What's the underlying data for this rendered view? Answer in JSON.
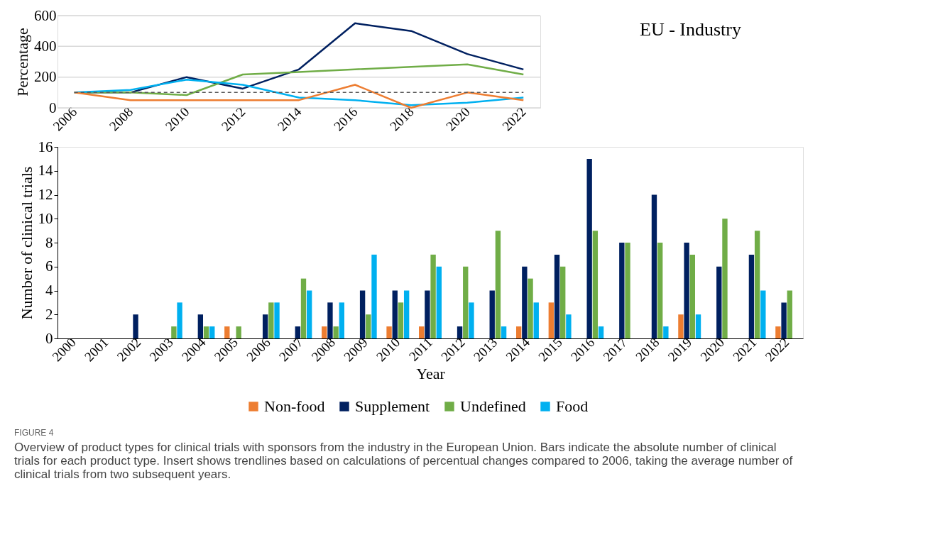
{
  "chart_data": [
    {
      "type": "bar",
      "title": "EU - Industry",
      "xlabel": "Year",
      "ylabel": "Number of clinical trials",
      "categories": [
        "2000",
        "2001",
        "2002",
        "2003",
        "2004",
        "2005",
        "2006",
        "2007",
        "2008",
        "2009",
        "2010",
        "2011",
        "2012",
        "2013",
        "2014",
        "2015",
        "2016",
        "2017",
        "2018",
        "2019",
        "2020",
        "2021",
        "2022"
      ],
      "series": [
        {
          "name": "Non-food",
          "color": "#ed7d31",
          "values": [
            0,
            0,
            0,
            0,
            0,
            1,
            0,
            0,
            1,
            0,
            1,
            1,
            0,
            0,
            1,
            3,
            0,
            0,
            0,
            2,
            0,
            0,
            1
          ]
        },
        {
          "name": "Supplement",
          "color": "#002060",
          "values": [
            0,
            0,
            2,
            0,
            2,
            0,
            2,
            1,
            3,
            4,
            4,
            4,
            1,
            4,
            6,
            7,
            15,
            8,
            12,
            8,
            6,
            7,
            3
          ]
        },
        {
          "name": "Undefined",
          "color": "#70ad47",
          "values": [
            0,
            0,
            0,
            1,
            1,
            1,
            3,
            5,
            1,
            2,
            3,
            7,
            6,
            9,
            5,
            6,
            9,
            8,
            8,
            7,
            10,
            9,
            4
          ]
        },
        {
          "name": "Food",
          "color": "#00b0f0",
          "values": [
            0,
            0,
            0,
            3,
            1,
            0,
            3,
            4,
            3,
            7,
            4,
            6,
            3,
            1,
            3,
            2,
            1,
            0,
            1,
            2,
            0,
            4,
            0
          ]
        }
      ],
      "ylim": [
        0,
        16
      ],
      "yticks": [
        0,
        2,
        4,
        6,
        8,
        10,
        12,
        14,
        16
      ],
      "grid": false,
      "legend": "bottom",
      "annotations": [
        "FIGURE 4",
        "Overview of product types for clinical trials with sponsors from the industry in the European Union. Bars indicate the absolute number of clinical trials for each product type. Insert shows trendlines based on calculations of percentual changes compared to 2006, taking the average number of clinical trials from two subsequent years."
      ]
    },
    {
      "type": "line",
      "ylabel": "Percentage",
      "categories": [
        "2006",
        "2008",
        "2010",
        "2012",
        "2014",
        "2016",
        "2018",
        "2020",
        "2022"
      ],
      "series": [
        {
          "color": "#002060",
          "values": [
            100,
            100,
            200,
            125,
            250,
            550,
            500,
            350,
            250
          ]
        },
        {
          "color": "#70ad47",
          "values": [
            100,
            100,
            83,
            217,
            233,
            250,
            267,
            283,
            217
          ]
        },
        {
          "color": "#00b0f0",
          "values": [
            100,
            117,
            183,
            150,
            67,
            50,
            17,
            33,
            67
          ]
        },
        {
          "color": "#ed7d31",
          "values": [
            100,
            50,
            50,
            50,
            50,
            150,
            0,
            100,
            50
          ]
        }
      ],
      "ylim": [
        0,
        600
      ],
      "yticks": [
        0,
        200,
        400,
        600
      ],
      "grid": "y",
      "ref_lines": [
        {
          "axis": "y",
          "value": 100,
          "color": "#595959",
          "line_style": "dashed"
        }
      ]
    }
  ]
}
